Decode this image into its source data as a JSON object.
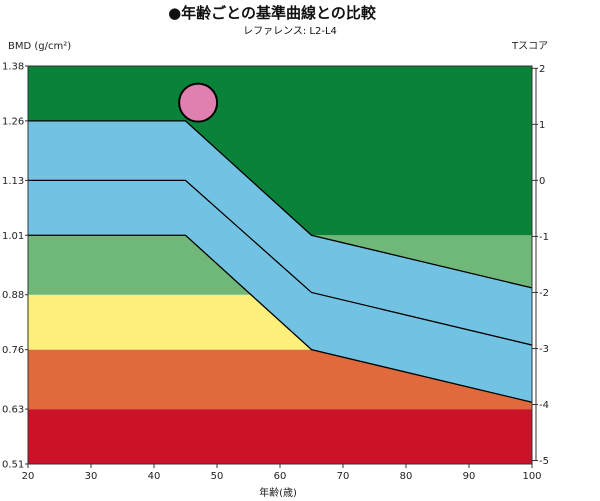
{
  "chart_data": {
    "type": "area",
    "title": "●年齢ごとの基準曲線との比較",
    "subtitle": "レファレンス: L2-L4",
    "ylabel": "BMD (g/cm²)",
    "y2label": "Tスコア",
    "xlabel": "年齢(歳)",
    "xlim": [
      20,
      100
    ],
    "ylim": [
      0.51,
      1.38
    ],
    "x_ticks": [
      "20",
      "30",
      "40",
      "50",
      "60",
      "70",
      "80",
      "90",
      "100"
    ],
    "y_ticks": [
      "0.51",
      "0.63",
      "0.76",
      "0.88",
      "1.01",
      "1.13",
      "1.26",
      "1.38"
    ],
    "t_ticks": [
      "-5",
      "-4",
      "-3",
      "-2",
      "-1",
      "0",
      "1",
      "2"
    ],
    "t_map": {
      "bmd_at_0": 1.13,
      "bmd_per_sd": 0.1225
    },
    "bands": [
      {
        "name": "red",
        "color": "#cc1229",
        "lower": [
          [
            20,
            0.51
          ],
          [
            100,
            0.51
          ]
        ],
        "upper": [
          [
            20,
            0.63
          ],
          [
            100,
            0.63
          ]
        ]
      },
      {
        "name": "orange",
        "color": "#e06a3c",
        "lower": [
          [
            20,
            0.63
          ],
          [
            100,
            0.63
          ]
        ],
        "upper": [
          [
            20,
            0.76
          ],
          [
            100,
            0.76
          ]
        ]
      },
      {
        "name": "yellow",
        "color": "#fdf07a",
        "lower": [
          [
            20,
            0.76
          ],
          [
            100,
            0.76
          ]
        ],
        "upper": [
          [
            20,
            0.88
          ],
          [
            100,
            0.88
          ]
        ]
      },
      {
        "name": "light-green",
        "color": "#70b879",
        "lower": [
          [
            20,
            0.88
          ],
          [
            100,
            0.88
          ]
        ],
        "upper": [
          [
            20,
            1.01
          ],
          [
            100,
            1.01
          ]
        ]
      },
      {
        "name": "dark-green",
        "color": "#0a823a",
        "lower": [
          [
            20,
            1.01
          ],
          [
            100,
            1.01
          ]
        ],
        "upper": [
          [
            20,
            1.38
          ],
          [
            100,
            1.38
          ]
        ]
      },
      {
        "name": "blue-reference",
        "color": "#72c3e3",
        "lower": [
          [
            20,
            1.01
          ],
          [
            45,
            1.01
          ],
          [
            65,
            0.76
          ],
          [
            100,
            0.645
          ]
        ],
        "upper": [
          [
            20,
            1.26
          ],
          [
            45,
            1.26
          ],
          [
            65,
            1.01
          ],
          [
            100,
            0.895
          ]
        ]
      }
    ],
    "lines": [
      {
        "name": "upper",
        "color": "#000000",
        "points": [
          [
            20,
            1.26
          ],
          [
            45,
            1.26
          ],
          [
            65,
            1.01
          ],
          [
            100,
            0.895
          ]
        ]
      },
      {
        "name": "mean",
        "color": "#000000",
        "points": [
          [
            20,
            1.13
          ],
          [
            45,
            1.13
          ],
          [
            65,
            0.885
          ],
          [
            100,
            0.77
          ]
        ]
      },
      {
        "name": "lower",
        "color": "#000000",
        "points": [
          [
            20,
            1.01
          ],
          [
            45,
            1.01
          ],
          [
            65,
            0.76
          ],
          [
            100,
            0.645
          ]
        ]
      }
    ],
    "patient_point": {
      "x": 47,
      "y": 1.3,
      "color": "#e080b0"
    }
  }
}
